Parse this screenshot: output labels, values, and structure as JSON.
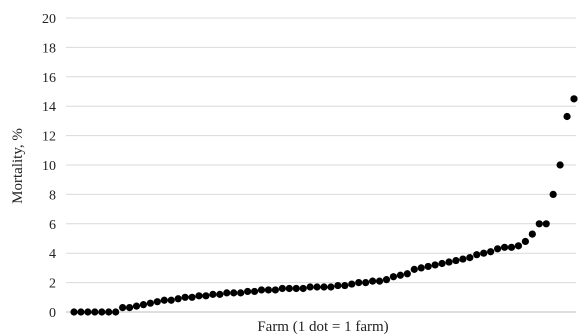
{
  "chart_data": {
    "type": "scatter",
    "title": "",
    "xlabel": "Farm (1 dot = 1 farm)",
    "ylabel": "Mortality, %",
    "ylim": [
      0,
      20
    ],
    "yticks": [
      "0",
      "2",
      "4",
      "6",
      "8",
      "10",
      "12",
      "14",
      "16",
      "18",
      "20"
    ],
    "grid": "horizontal",
    "marker_color": "#000000",
    "y": [
      0,
      0,
      0,
      0,
      0,
      0,
      0,
      0.3,
      0.3,
      0.4,
      0.5,
      0.6,
      0.7,
      0.8,
      0.8,
      0.9,
      1.0,
      1.0,
      1.1,
      1.1,
      1.2,
      1.2,
      1.3,
      1.3,
      1.3,
      1.4,
      1.4,
      1.5,
      1.5,
      1.5,
      1.6,
      1.6,
      1.6,
      1.6,
      1.7,
      1.7,
      1.7,
      1.7,
      1.8,
      1.8,
      1.9,
      2.0,
      2.0,
      2.1,
      2.1,
      2.2,
      2.4,
      2.5,
      2.6,
      2.9,
      3.0,
      3.1,
      3.2,
      3.3,
      3.4,
      3.5,
      3.6,
      3.7,
      3.9,
      4.0,
      4.1,
      4.3,
      4.4,
      4.4,
      4.5,
      4.8,
      5.3,
      6.0,
      6.0,
      8.0,
      10.0,
      13.3,
      14.5
    ]
  }
}
